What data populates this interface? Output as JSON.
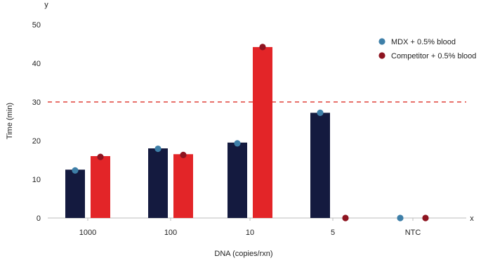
{
  "chart_data": {
    "type": "bar",
    "xlabel": "DNA (copies/rxn)",
    "ylabel": "Time (min)",
    "categories": [
      "1000",
      "100",
      "10",
      "5",
      "NTC"
    ],
    "ylim": [
      0,
      50
    ],
    "yticks": [
      0,
      10,
      20,
      30,
      40,
      50
    ],
    "x_axis_end_label": "x",
    "y_axis_end_label": "y",
    "threshold": {
      "value": 30,
      "color": "#e0403a",
      "style": "dashed"
    },
    "series": [
      {
        "name": "MDX + 0.5% blood",
        "bar_color": "#141a3f",
        "marker_color": "#3e7fa8",
        "values": [
          12.5,
          18,
          19.5,
          27.2,
          null
        ],
        "markers": [
          12.3,
          17.9,
          19.3,
          27.2,
          0
        ]
      },
      {
        "name": "Competitor + 0.5% blood",
        "bar_color": "#e32528",
        "marker_color": "#8e1420",
        "values": [
          16,
          16.5,
          44.2,
          null,
          null
        ],
        "markers": [
          15.8,
          16.3,
          44.2,
          0,
          0
        ]
      }
    ],
    "legend_position": "top-right",
    "grid": false
  }
}
